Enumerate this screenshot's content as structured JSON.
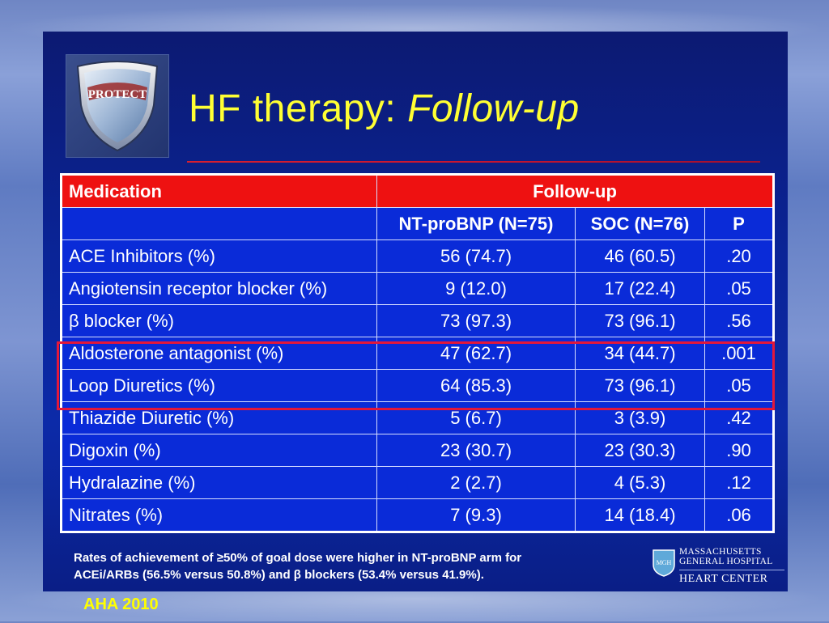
{
  "slide": {
    "title_plain": "HF therapy: ",
    "title_italic": "Follow-up",
    "logo_text": "PROTECT"
  },
  "table": {
    "header": {
      "medication": "Medication",
      "followup": "Follow-up"
    },
    "subheader": {
      "col1": "NT-proBNP (N=75)",
      "col2": "SOC (N=76)",
      "col3": "P"
    },
    "rows": [
      {
        "name": "ACE Inhibitors (%)",
        "ntprobnp": "56 (74.7)",
        "soc": "46 (60.5)",
        "p": ".20"
      },
      {
        "name": "Angiotensin receptor blocker (%)",
        "ntprobnp": "9 (12.0)",
        "soc": "17 (22.4)",
        "p": ".05"
      },
      {
        "name": "β blocker (%)",
        "ntprobnp": "73 (97.3)",
        "soc": "73 (96.1)",
        "p": ".56"
      },
      {
        "name": "Aldosterone antagonist (%)",
        "ntprobnp": "47 (62.7)",
        "soc": "34 (44.7)",
        "p": ".001"
      },
      {
        "name": "Loop Diuretics (%)",
        "ntprobnp": "64 (85.3)",
        "soc": "73 (96.1)",
        "p": ".05"
      },
      {
        "name": "Thiazide Diuretic (%)",
        "ntprobnp": "5 (6.7)",
        "soc": "3 (3.9)",
        "p": ".42"
      },
      {
        "name": "Digoxin (%)",
        "ntprobnp": "23 (30.7)",
        "soc": "23 (30.3)",
        "p": ".90"
      },
      {
        "name": "Hydralazine (%)",
        "ntprobnp": "2 (2.7)",
        "soc": "4 (5.3)",
        "p": ".12"
      },
      {
        "name": "Nitrates (%)",
        "ntprobnp": "7 (9.3)",
        "soc": "14 (18.4)",
        "p": ".06"
      }
    ]
  },
  "footnote": {
    "line1": "Rates of achievement of ≥50% of goal dose were higher in NT-proBNP arm for",
    "line2": "ACEi/ARBs (56.5% versus 50.8%) and β blockers (53.4% versus 41.9%)."
  },
  "institution": {
    "name_line1": "MASSACHUSETTS",
    "name_line2": "GENERAL HOSPITAL",
    "department": "HEART CENTER",
    "seal_text": "MGH"
  },
  "source": "AHA 2010",
  "colors": {
    "title": "#ffff33",
    "header_bg": "#ee1111",
    "table_bg": "#0a2bd8",
    "highlight_border": "#e3173a",
    "source_text": "#ffff00"
  }
}
